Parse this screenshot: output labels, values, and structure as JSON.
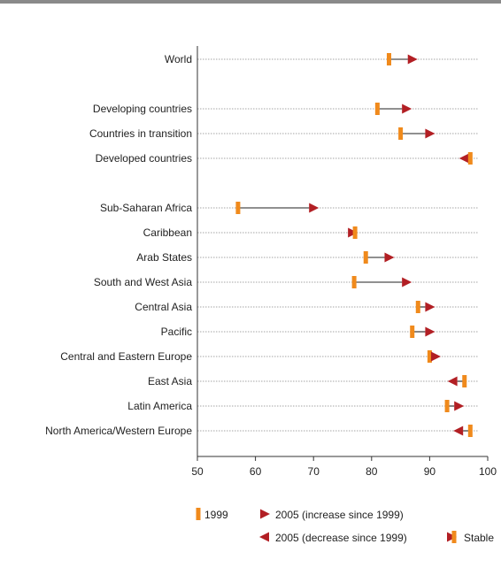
{
  "chart_data": {
    "type": "dot-arrow",
    "title": "",
    "xlabel": "",
    "ylabel": "",
    "xlim": [
      50,
      100
    ],
    "x_ticks": [
      50,
      60,
      70,
      80,
      90,
      100
    ],
    "colors": {
      "marker_1999": "#f08a1c",
      "marker_2005": "#b21f24",
      "axis": "#333333",
      "dotted": "#888888"
    },
    "legend": {
      "position": "bottom",
      "items": [
        {
          "key": "m1999",
          "label": "1999"
        },
        {
          "key": "increase",
          "label": "2005 (increase since 1999)"
        },
        {
          "key": "decrease",
          "label": "2005 (decrease since 1999)"
        },
        {
          "key": "stable",
          "label": "Stable"
        }
      ]
    },
    "groups": [
      [
        {
          "label": "World",
          "v1999": 83,
          "v2005": 87
        }
      ],
      [
        {
          "label": "Developing countries",
          "v1999": 81,
          "v2005": 86
        },
        {
          "label": "Countries in transition",
          "v1999": 85,
          "v2005": 90
        },
        {
          "label": "Developed countries",
          "v1999": 97,
          "v2005": 96
        }
      ],
      [
        {
          "label": "Sub-Saharan Africa",
          "v1999": 57,
          "v2005": 70
        },
        {
          "label": "Caribbean",
          "v1999": 77,
          "v2005": 77
        },
        {
          "label": "Arab States",
          "v1999": 79,
          "v2005": 83
        },
        {
          "label": "South and West Asia",
          "v1999": 77,
          "v2005": 86
        },
        {
          "label": "Central Asia",
          "v1999": 88,
          "v2005": 90
        },
        {
          "label": "Pacific",
          "v1999": 87,
          "v2005": 90
        },
        {
          "label": "Central and Eastern Europe",
          "v1999": 90,
          "v2005": 91
        },
        {
          "label": "East Asia",
          "v1999": 96,
          "v2005": 94
        },
        {
          "label": "Latin America",
          "v1999": 93,
          "v2005": 95
        },
        {
          "label": "North America/Western Europe",
          "v1999": 97,
          "v2005": 95
        }
      ]
    ]
  }
}
